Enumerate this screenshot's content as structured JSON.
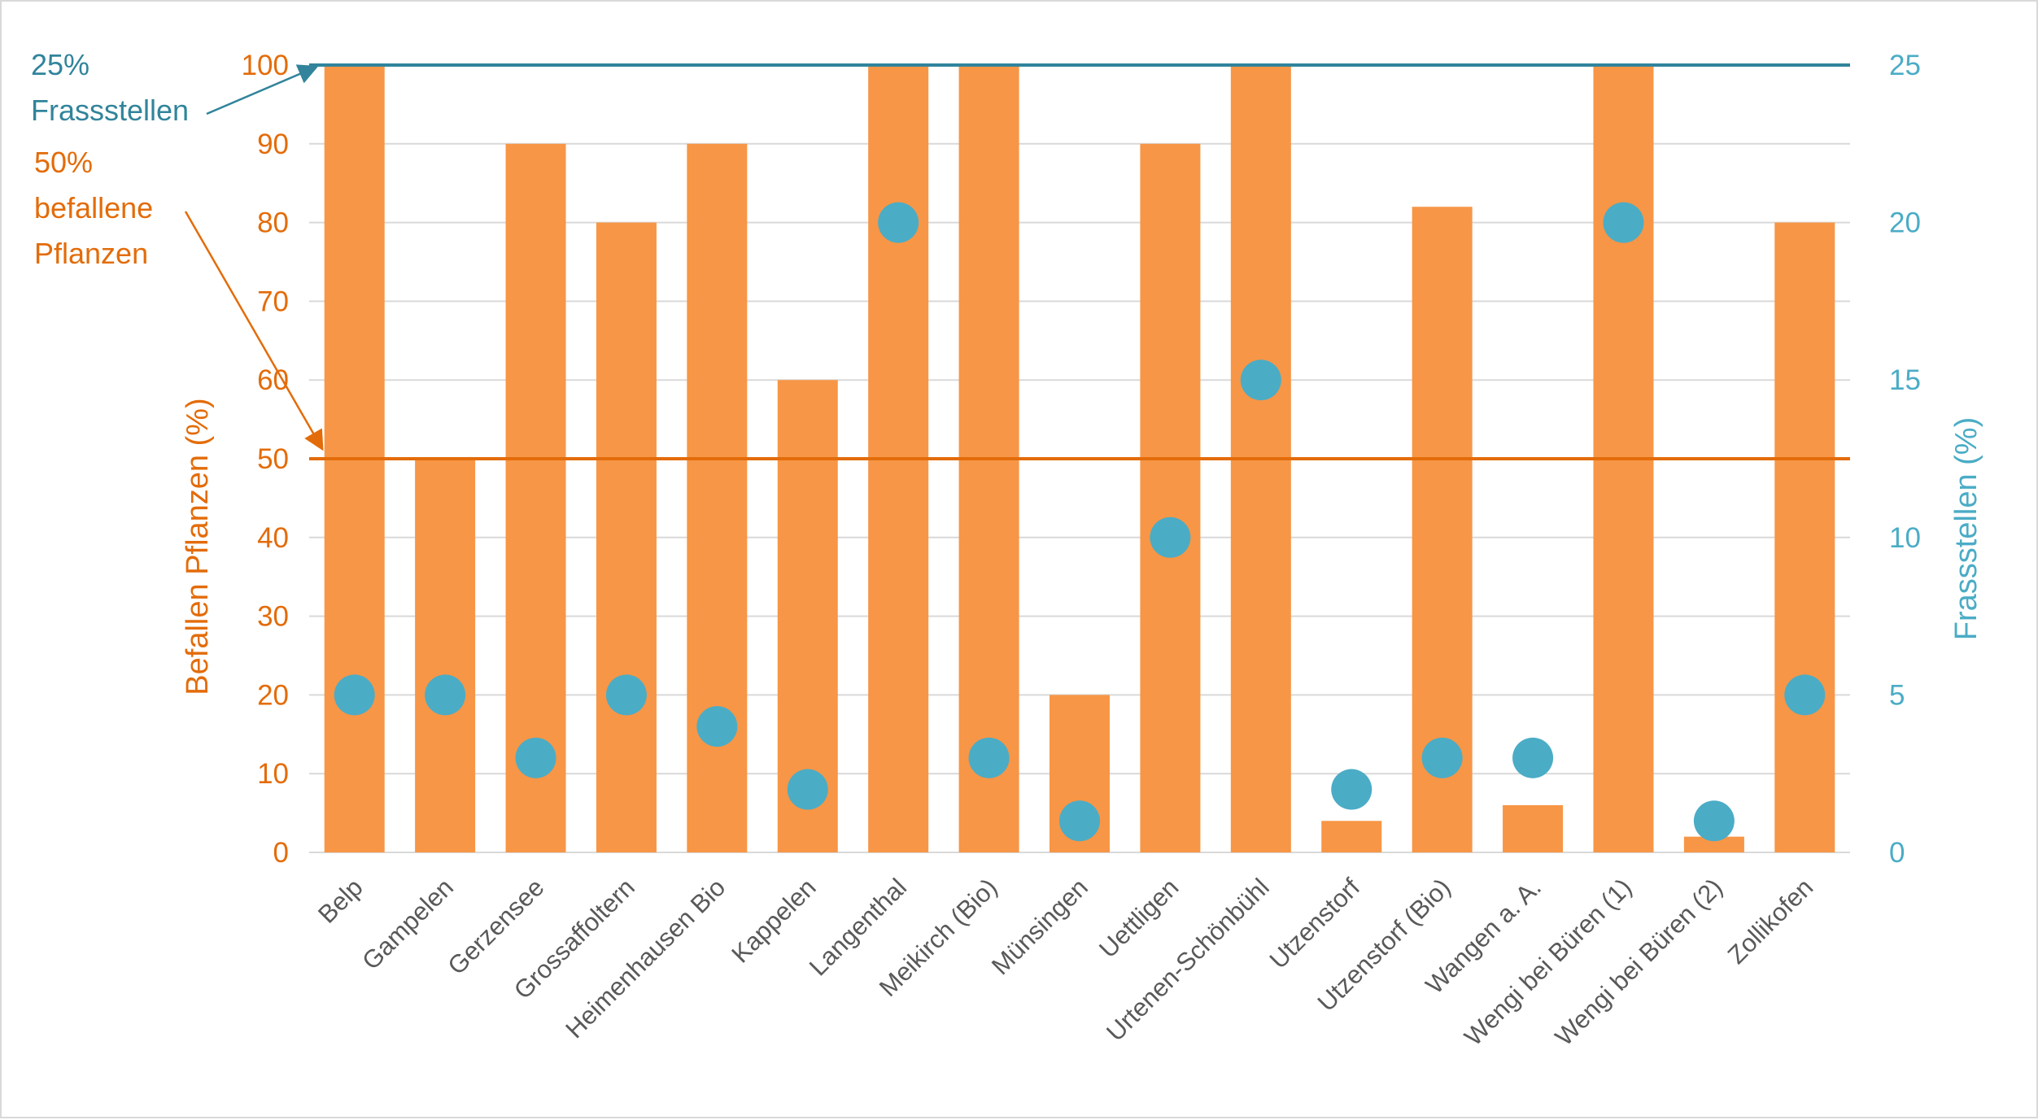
{
  "chart_data": {
    "type": "bar",
    "categories": [
      "Belp",
      "Gampelen",
      "Gerzensee",
      "Grossaffoltern",
      "Heimenhausen Bio",
      "Kappelen",
      "Langenthal",
      "Meikirch (Bio)",
      "Münsingen",
      "Uettligen",
      "Urtenen-Schönbühl",
      "Utzenstorf",
      "Utzenstorf (Bio)",
      "Wangen a. A.",
      "Wengi bei Büren (1)",
      "Wengi bei Büren (2)",
      "Zollikofen"
    ],
    "series": [
      {
        "name": "Befallen Pflanzen (%)",
        "type": "bar",
        "axis": "left",
        "color": "#f79646",
        "values": [
          100,
          50,
          90,
          80,
          90,
          60,
          100,
          100,
          20,
          90,
          100,
          4,
          82,
          6,
          100,
          2,
          80
        ]
      },
      {
        "name": "Frassstellen (%)",
        "type": "scatter",
        "axis": "right",
        "color": "#4bacc6",
        "values": [
          5,
          5,
          3,
          5,
          4,
          2,
          20,
          3,
          1,
          10,
          15,
          2,
          3,
          3,
          20,
          1,
          5
        ]
      }
    ],
    "ylabel": "Befallen Pflanzen (%)",
    "y2label": "Frassstellen (%)",
    "ylim": [
      0,
      100
    ],
    "y2lim": [
      0,
      25
    ],
    "yticks": [
      0,
      10,
      20,
      30,
      40,
      50,
      60,
      70,
      80,
      90,
      100
    ],
    "y2ticks": [
      0,
      5,
      10,
      15,
      20,
      25
    ],
    "grid": true,
    "reference_lines": [
      {
        "axis": "right",
        "value": 25,
        "color": "#31849b",
        "label_lines": [
          "25%",
          "Frassstellen"
        ]
      },
      {
        "axis": "left",
        "value": 50,
        "color": "#e36c0a",
        "label_lines": [
          "50%",
          "befallene",
          "Pflanzen"
        ]
      }
    ]
  }
}
